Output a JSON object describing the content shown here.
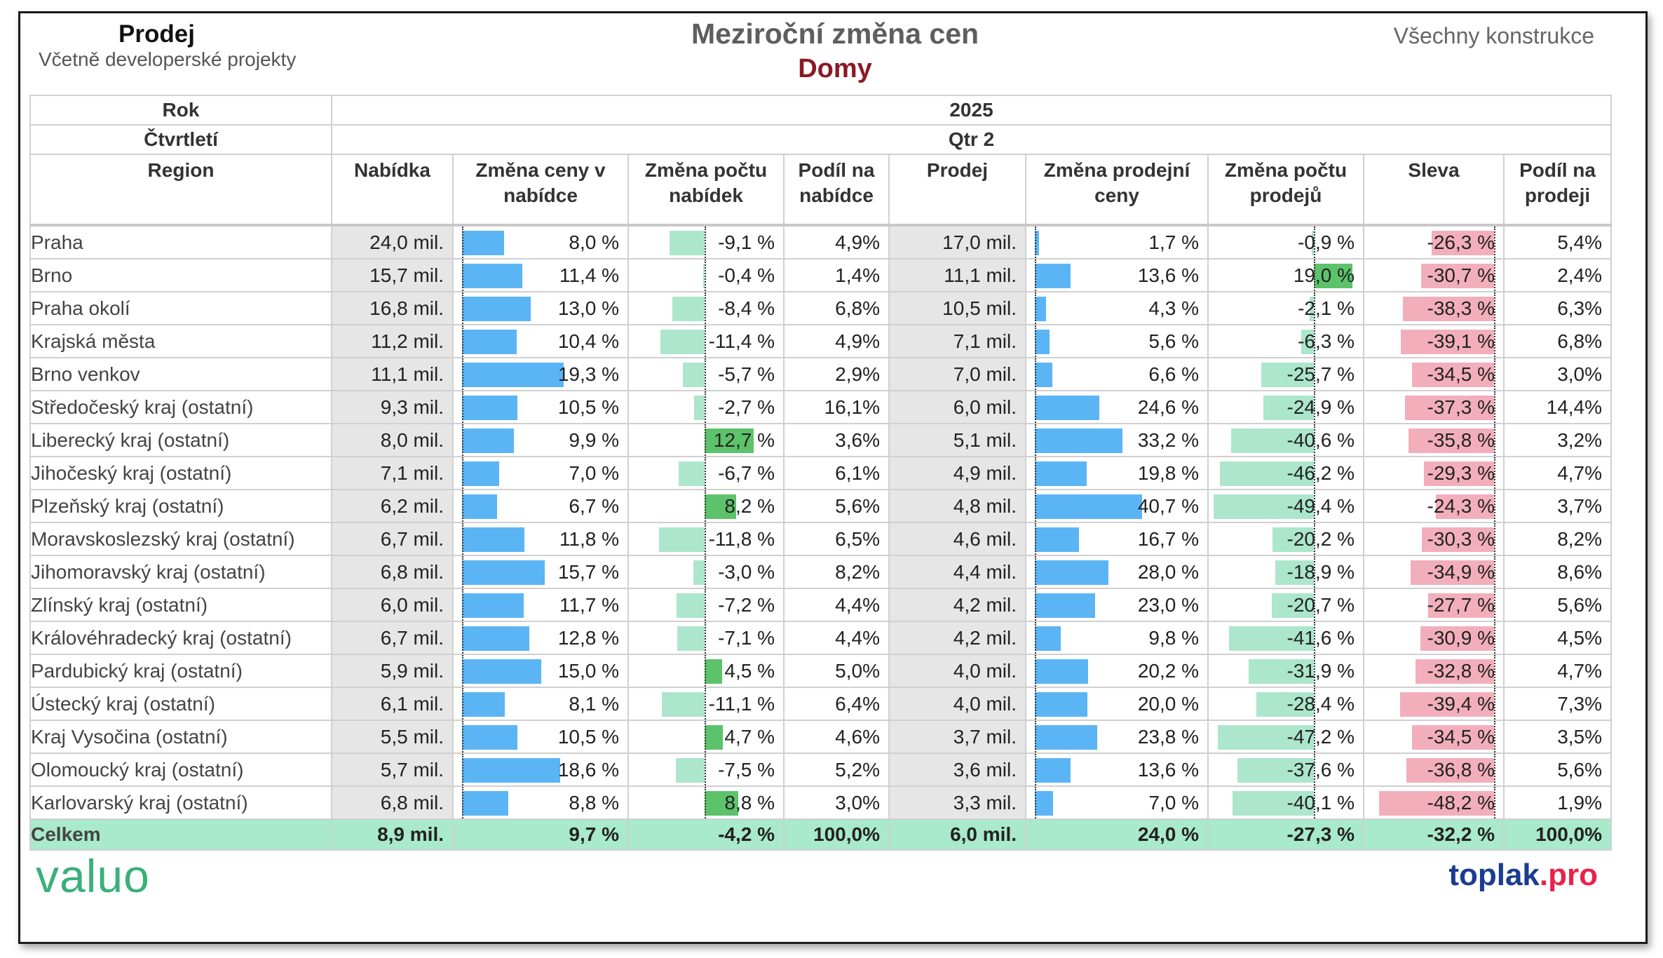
{
  "header": {
    "left_title": "Prodej",
    "left_subtitle": "Včetně developerské projekty",
    "title": "Meziroční změna cen",
    "subtitle": "Domy",
    "right_label": "Všechny konstrukce"
  },
  "table": {
    "row_year_label": "Rok",
    "year": "2025",
    "row_quarter_label": "Čtvrtletí",
    "quarter": "Qtr 2",
    "columns": [
      "Region",
      "Nabídka",
      "Změna ceny v nabídce",
      "Změna počtu nabídek",
      "Podíl na nabídce",
      "Prodej",
      "Změna prodejní ceny",
      "Změna počtu prodejů",
      "Sleva",
      "Podíl na prodeji"
    ],
    "rows": [
      {
        "region": "Praha",
        "nabidka": "24,0 mil.",
        "zmena_ceny": "8,0 %",
        "zmena_poctu": "-9,1 %",
        "podil_nabidka": "4,9%",
        "prodej": "17,0 mil.",
        "zmena_prodejni": "1,7 %",
        "zmena_prodeju": "-0,9 %",
        "sleva": "-26,3 %",
        "podil_prodej": "5,4%"
      },
      {
        "region": "Brno",
        "nabidka": "15,7 mil.",
        "zmena_ceny": "11,4 %",
        "zmena_poctu": "-0,4 %",
        "podil_nabidka": "1,4%",
        "prodej": "11,1 mil.",
        "zmena_prodejni": "13,6 %",
        "zmena_prodeju": "19,0 %",
        "sleva": "-30,7 %",
        "podil_prodej": "2,4%"
      },
      {
        "region": "Praha okolí",
        "nabidka": "16,8 mil.",
        "zmena_ceny": "13,0 %",
        "zmena_poctu": "-8,4 %",
        "podil_nabidka": "6,8%",
        "prodej": "10,5 mil.",
        "zmena_prodejni": "4,3 %",
        "zmena_prodeju": "-2,1 %",
        "sleva": "-38,3 %",
        "podil_prodej": "6,3%"
      },
      {
        "region": "Krajská města",
        "nabidka": "11,2 mil.",
        "zmena_ceny": "10,4 %",
        "zmena_poctu": "-11,4 %",
        "podil_nabidka": "4,9%",
        "prodej": "7,1 mil.",
        "zmena_prodejni": "5,6 %",
        "zmena_prodeju": "-6,3 %",
        "sleva": "-39,1 %",
        "podil_prodej": "6,8%"
      },
      {
        "region": "Brno venkov",
        "nabidka": "11,1 mil.",
        "zmena_ceny": "19,3 %",
        "zmena_poctu": "-5,7 %",
        "podil_nabidka": "2,9%",
        "prodej": "7,0 mil.",
        "zmena_prodejni": "6,6 %",
        "zmena_prodeju": "-25,7 %",
        "sleva": "-34,5 %",
        "podil_prodej": "3,0%"
      },
      {
        "region": "Středočeský kraj (ostatní)",
        "nabidka": "9,3 mil.",
        "zmena_ceny": "10,5 %",
        "zmena_poctu": "-2,7 %",
        "podil_nabidka": "16,1%",
        "prodej": "6,0 mil.",
        "zmena_prodejni": "24,6 %",
        "zmena_prodeju": "-24,9 %",
        "sleva": "-37,3 %",
        "podil_prodej": "14,4%"
      },
      {
        "region": "Liberecký kraj (ostatní)",
        "nabidka": "8,0 mil.",
        "zmena_ceny": "9,9 %",
        "zmena_poctu": "12,7 %",
        "podil_nabidka": "3,6%",
        "prodej": "5,1 mil.",
        "zmena_prodejni": "33,2 %",
        "zmena_prodeju": "-40,6 %",
        "sleva": "-35,8 %",
        "podil_prodej": "3,2%"
      },
      {
        "region": "Jihočeský kraj (ostatní)",
        "nabidka": "7,1 mil.",
        "zmena_ceny": "7,0 %",
        "zmena_poctu": "-6,7 %",
        "podil_nabidka": "6,1%",
        "prodej": "4,9 mil.",
        "zmena_prodejni": "19,8 %",
        "zmena_prodeju": "-46,2 %",
        "sleva": "-29,3 %",
        "podil_prodej": "4,7%"
      },
      {
        "region": "Plzeňský kraj (ostatní)",
        "nabidka": "6,2 mil.",
        "zmena_ceny": "6,7 %",
        "zmena_poctu": "8,2 %",
        "podil_nabidka": "5,6%",
        "prodej": "4,8 mil.",
        "zmena_prodejni": "40,7 %",
        "zmena_prodeju": "-49,4 %",
        "sleva": "-24,3 %",
        "podil_prodej": "3,7%"
      },
      {
        "region": "Moravskoslezský kraj (ostatní)",
        "nabidka": "6,7 mil.",
        "zmena_ceny": "11,8 %",
        "zmena_poctu": "-11,8 %",
        "podil_nabidka": "6,5%",
        "prodej": "4,6 mil.",
        "zmena_prodejni": "16,7 %",
        "zmena_prodeju": "-20,2 %",
        "sleva": "-30,3 %",
        "podil_prodej": "8,2%"
      },
      {
        "region": "Jihomoravský kraj (ostatní)",
        "nabidka": "6,8 mil.",
        "zmena_ceny": "15,7 %",
        "zmena_poctu": "-3,0 %",
        "podil_nabidka": "8,2%",
        "prodej": "4,4 mil.",
        "zmena_prodejni": "28,0 %",
        "zmena_prodeju": "-18,9 %",
        "sleva": "-34,9 %",
        "podil_prodej": "8,6%"
      },
      {
        "region": "Zlínský kraj (ostatní)",
        "nabidka": "6,0 mil.",
        "zmena_ceny": "11,7 %",
        "zmena_poctu": "-7,2 %",
        "podil_nabidka": "4,4%",
        "prodej": "4,2 mil.",
        "zmena_prodejni": "23,0 %",
        "zmena_prodeju": "-20,7 %",
        "sleva": "-27,7 %",
        "podil_prodej": "5,6%"
      },
      {
        "region": "Královéhradecký kraj (ostatní)",
        "nabidka": "6,7 mil.",
        "zmena_ceny": "12,8 %",
        "zmena_poctu": "-7,1 %",
        "podil_nabidka": "4,4%",
        "prodej": "4,2 mil.",
        "zmena_prodejni": "9,8 %",
        "zmena_prodeju": "-41,6 %",
        "sleva": "-30,9 %",
        "podil_prodej": "4,5%"
      },
      {
        "region": "Pardubický kraj (ostatní)",
        "nabidka": "5,9 mil.",
        "zmena_ceny": "15,0 %",
        "zmena_poctu": "4,5 %",
        "podil_nabidka": "5,0%",
        "prodej": "4,0 mil.",
        "zmena_prodejni": "20,2 %",
        "zmena_prodeju": "-31,9 %",
        "sleva": "-32,8 %",
        "podil_prodej": "4,7%"
      },
      {
        "region": "Ústecký kraj (ostatní)",
        "nabidka": "6,1 mil.",
        "zmena_ceny": "8,1 %",
        "zmena_poctu": "-11,1 %",
        "podil_nabidka": "6,4%",
        "prodej": "4,0 mil.",
        "zmena_prodejni": "20,0 %",
        "zmena_prodeju": "-28,4 %",
        "sleva": "-39,4 %",
        "podil_prodej": "7,3%"
      },
      {
        "region": "Kraj Vysočina (ostatní)",
        "nabidka": "5,5 mil.",
        "zmena_ceny": "10,5 %",
        "zmena_poctu": "4,7 %",
        "podil_nabidka": "4,6%",
        "prodej": "3,7 mil.",
        "zmena_prodejni": "23,8 %",
        "zmena_prodeju": "-47,2 %",
        "sleva": "-34,5 %",
        "podil_prodej": "3,5%"
      },
      {
        "region": "Olomoucký kraj (ostatní)",
        "nabidka": "5,7 mil.",
        "zmena_ceny": "18,6 %",
        "zmena_poctu": "-7,5 %",
        "podil_nabidka": "5,2%",
        "prodej": "3,6 mil.",
        "zmena_prodejni": "13,6 %",
        "zmena_prodeju": "-37,6 %",
        "sleva": "-36,8 %",
        "podil_prodej": "5,6%"
      },
      {
        "region": "Karlovarský kraj (ostatní)",
        "nabidka": "6,8 mil.",
        "zmena_ceny": "8,8 %",
        "zmena_poctu": "8,8 %",
        "podil_nabidka": "3,0%",
        "prodej": "3,3 mil.",
        "zmena_prodejni": "7,0 %",
        "zmena_prodeju": "-40,1 %",
        "sleva": "-48,2 %",
        "podil_prodej": "1,9%"
      }
    ],
    "total": {
      "region": "Celkem",
      "nabidka": "8,9 mil.",
      "zmena_ceny": "9,7 %",
      "zmena_poctu": "-4,2 %",
      "podil_nabidka": "100,0%",
      "prodej": "6,0 mil.",
      "zmena_prodejni": "24,0 %",
      "zmena_prodeju": "-27,3 %",
      "sleva": "-32,2 %",
      "podil_prodej": "100,0%"
    }
  },
  "colors": {
    "positive_bar": "#5bb5f5",
    "negative_bar": "#ace6cc",
    "positive_count_bar": "#5cc36a",
    "discount_bar": "#f2afbb",
    "total_row": "#a9e9cc",
    "subtitle": "#8b1a24"
  },
  "logos": {
    "left": "valuo",
    "right_a": "toplak",
    "right_b": ".pro"
  }
}
